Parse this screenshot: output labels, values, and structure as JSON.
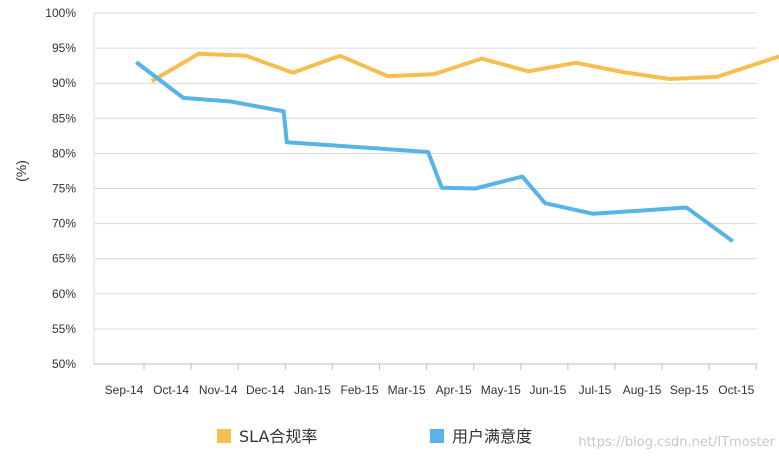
{
  "chart_data": {
    "type": "line",
    "title": "",
    "xlabel": "",
    "ylabel": "(%)",
    "ylim": [
      50,
      100
    ],
    "yticks": [
      "50%",
      "55%",
      "60%",
      "65%",
      "70%",
      "75%",
      "80%",
      "85%",
      "90%",
      "95%",
      "100%"
    ],
    "grid": "horizontal",
    "legend": "bottom",
    "x": [
      {
        "label": "Sep-14",
        "value": "2014-09-15"
      },
      {
        "label": "Oct-14",
        "value": "2014-10-15"
      },
      {
        "label": "Nov-14",
        "value": "2014-11-15"
      },
      {
        "label": "Dec-14",
        "value": "2014-12-15"
      },
      {
        "label": "Jan-15",
        "value": "2015-01-15"
      },
      {
        "label": "Feb-15",
        "value": "2015-02-15"
      },
      {
        "label": "Mar-15",
        "value": "2015-03-15"
      },
      {
        "label": "Apr-15",
        "value": "2015-04-15"
      },
      {
        "label": "May-15",
        "value": "2015-05-15"
      },
      {
        "label": "Jun-15",
        "value": "2015-06-15"
      },
      {
        "label": "Jul-15",
        "value": "2015-07-15"
      },
      {
        "label": "Aug-15",
        "value": "2015-08-15"
      },
      {
        "label": "Sep-15",
        "value": "2015-09-15"
      },
      {
        "label": "Oct-15",
        "value": "2015-10-15"
      }
    ],
    "series": [
      {
        "name": "SLA合规率",
        "color": "#f5be4e",
        "points": [
          {
            "x": "2014-09-20",
            "y": 90.3
          },
          {
            "x": "2014-10-20",
            "y": 94.2
          },
          {
            "x": "2014-11-20",
            "y": 93.9
          },
          {
            "x": "2014-12-20",
            "y": 91.5
          },
          {
            "x": "2015-01-20",
            "y": 93.9
          },
          {
            "x": "2015-02-20",
            "y": 91.0
          },
          {
            "x": "2015-03-20",
            "y": 91.3
          },
          {
            "x": "2015-04-20",
            "y": 93.5
          },
          {
            "x": "2015-05-20",
            "y": 91.7
          },
          {
            "x": "2015-06-20",
            "y": 92.9
          },
          {
            "x": "2015-07-20",
            "y": 91.6
          },
          {
            "x": "2015-08-20",
            "y": 90.6
          },
          {
            "x": "2015-09-20",
            "y": 90.9
          },
          {
            "x": "2015-10-31",
            "y": 93.9
          }
        ]
      },
      {
        "name": "用户满意度",
        "color": "#56b4e6",
        "points": [
          {
            "x": "2014-09-10",
            "y": 93.0
          },
          {
            "x": "2014-10-10",
            "y": 87.9
          },
          {
            "x": "2014-11-10",
            "y": 87.4
          },
          {
            "x": "2014-12-14",
            "y": 86.0
          },
          {
            "x": "2014-12-16",
            "y": 81.6
          },
          {
            "x": "2015-03-16",
            "y": 80.2
          },
          {
            "x": "2015-03-25",
            "y": 75.1
          },
          {
            "x": "2015-04-16",
            "y": 75.0
          },
          {
            "x": "2015-05-16",
            "y": 76.7
          },
          {
            "x": "2015-05-31",
            "y": 72.9
          },
          {
            "x": "2015-07-01",
            "y": 71.4
          },
          {
            "x": "2015-08-31",
            "y": 72.3
          },
          {
            "x": "2015-09-30",
            "y": 67.5
          }
        ]
      }
    ]
  },
  "watermark": "https://blog.csdn.net/ITmoster"
}
